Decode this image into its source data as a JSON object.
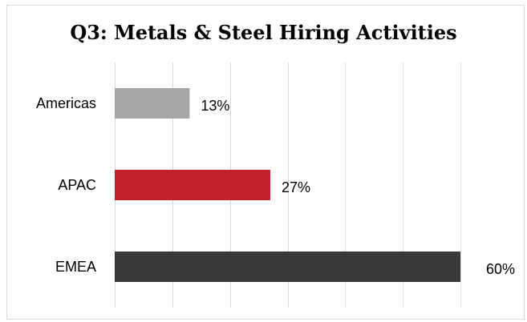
{
  "chart_data": {
    "type": "bar",
    "orientation": "horizontal",
    "title": "Q3: Metals & Steel Hiring Activities",
    "categories": [
      "Americas",
      "APAC",
      "EMEA"
    ],
    "values": [
      13,
      27,
      60
    ],
    "value_labels": [
      "13%",
      "27%",
      "60%"
    ],
    "colors": [
      "#a6a6a6",
      "#c0212b",
      "#3b3838"
    ],
    "xlim": [
      0,
      60
    ],
    "xlabel": "",
    "ylabel": "",
    "grid": "vertical",
    "legend": "none"
  }
}
